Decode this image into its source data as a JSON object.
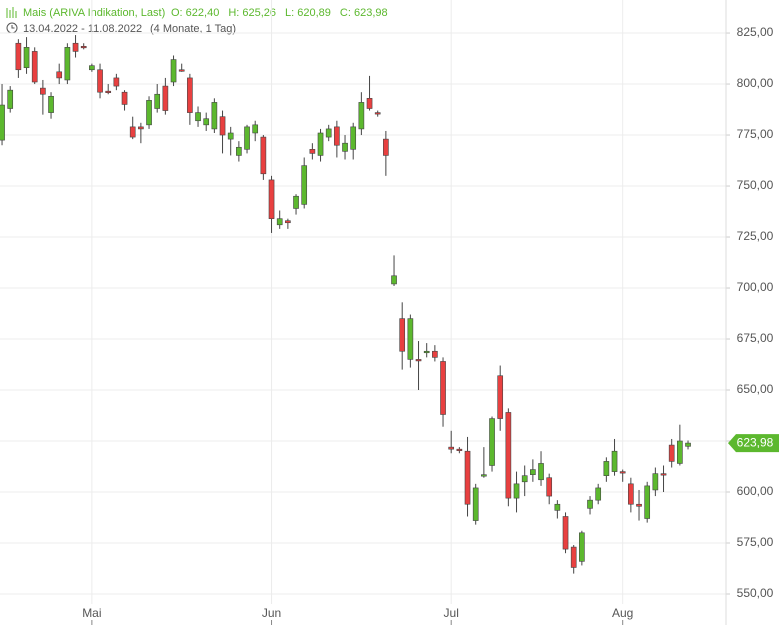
{
  "chart_data": {
    "type": "candlestick",
    "title": "Mais (ARIVA Indikation, Last)",
    "quote_labels": [
      "O: 622,40",
      "H: 625,26",
      "L: 620,89",
      "C: 623,98"
    ],
    "date_range": "13.04.2022 - 11.08.2022",
    "period": "(4 Monate, 1 Tag)",
    "up_color": "#5cb82e",
    "down_color": "#e84040",
    "grid": true,
    "xlim": [
      -0.25,
      88.65
    ],
    "xticks": [
      {
        "value": 11,
        "label": "Mai"
      },
      {
        "value": 33,
        "label": "Jun"
      },
      {
        "value": 55,
        "label": "Jul"
      },
      {
        "value": 76,
        "label": "Aug"
      }
    ],
    "ylim": [
      534.8,
      841.2
    ],
    "yticks": [
      {
        "value": 550,
        "label": "550,00"
      },
      {
        "value": 575,
        "label": "575,00"
      },
      {
        "value": 600,
        "label": "600,00"
      },
      {
        "value": 625,
        "label": "625,00"
      },
      {
        "value": 650,
        "label": "650,00"
      },
      {
        "value": 675,
        "label": "675,00"
      },
      {
        "value": 700,
        "label": "700,00"
      },
      {
        "value": 725,
        "label": "725,00"
      },
      {
        "value": 750,
        "label": "750,00"
      },
      {
        "value": 775,
        "label": "775,00"
      },
      {
        "value": 800,
        "label": "800,00"
      },
      {
        "value": 825,
        "label": "825,00"
      }
    ],
    "last_price": {
      "value": 623.98,
      "label": "623,98"
    },
    "open": [
      772.5,
      788,
      820,
      808,
      816,
      798,
      786,
      806,
      802,
      820,
      818.5,
      807,
      807,
      796.5,
      803,
      796,
      779,
      779,
      780,
      788,
      799,
      801,
      807,
      803,
      782,
      780,
      778,
      784,
      773,
      765,
      768,
      776,
      774,
      753,
      731,
      733,
      739,
      741,
      768,
      765,
      774,
      779,
      767,
      768,
      778,
      793,
      786,
      773,
      702,
      685,
      665,
      665,
      668.5,
      669,
      664,
      622,
      621,
      620,
      586,
      608,
      613,
      657,
      639,
      597,
      605,
      608.5,
      606,
      607,
      591,
      588,
      573,
      566,
      592,
      596,
      608,
      610,
      610,
      604,
      594,
      587,
      601,
      609,
      623,
      614,
      622.4
    ],
    "high": [
      800,
      799,
      822,
      823,
      818,
      802,
      796,
      810,
      820,
      824,
      820,
      810,
      810,
      800,
      805,
      797,
      784,
      781,
      794,
      800,
      803,
      814,
      810,
      805,
      789,
      786,
      793,
      787,
      779,
      772,
      780,
      782,
      775,
      755,
      738,
      734,
      746,
      764,
      771,
      778,
      780,
      782,
      775,
      781,
      796,
      804,
      787,
      777,
      716,
      693,
      687,
      674,
      673,
      672,
      666,
      630,
      622,
      627,
      604,
      622,
      637,
      662,
      641,
      610,
      613,
      616,
      620,
      609,
      596,
      590,
      574,
      581,
      598,
      604,
      617,
      626,
      611,
      607,
      601,
      605,
      612,
      613,
      626,
      633,
      625.26
    ],
    "low": [
      770,
      786,
      803,
      805,
      800,
      785,
      783,
      800,
      800,
      813,
      817,
      806,
      793,
      795,
      797,
      787,
      773,
      771,
      778,
      786,
      785,
      799,
      806,
      780,
      779,
      777,
      776,
      766,
      765,
      762,
      766,
      772,
      753,
      727,
      729,
      729,
      736,
      739,
      763,
      762,
      772,
      764,
      763,
      763,
      775,
      787,
      784,
      755,
      701,
      660,
      661,
      650,
      666,
      664,
      632,
      619,
      619,
      588,
      584,
      607,
      610,
      630,
      593,
      590,
      598,
      605,
      603,
      594,
      587,
      570,
      560,
      564,
      589,
      594,
      605,
      608,
      605,
      590,
      586,
      585,
      598,
      600,
      612,
      613,
      620.89
    ],
    "close": [
      789.7,
      797,
      807,
      818,
      801,
      795,
      794,
      803,
      818,
      816,
      818,
      809,
      796,
      796,
      799,
      790,
      774,
      778,
      792,
      795,
      787,
      812,
      806.5,
      786,
      786,
      783,
      791,
      775,
      776,
      769,
      779,
      780,
      756,
      734,
      734,
      732,
      745,
      760,
      766,
      776,
      778,
      770,
      771,
      779,
      791,
      788,
      785.5,
      765,
      706,
      669,
      685,
      664.5,
      669,
      666,
      638,
      621,
      620.5,
      594,
      602,
      608.5,
      636,
      636,
      597,
      604,
      608,
      611,
      614,
      598,
      594,
      572,
      563,
      580,
      596,
      602,
      615,
      620,
      609.5,
      594,
      593,
      603,
      609,
      608.5,
      615,
      625,
      623.98
    ]
  }
}
